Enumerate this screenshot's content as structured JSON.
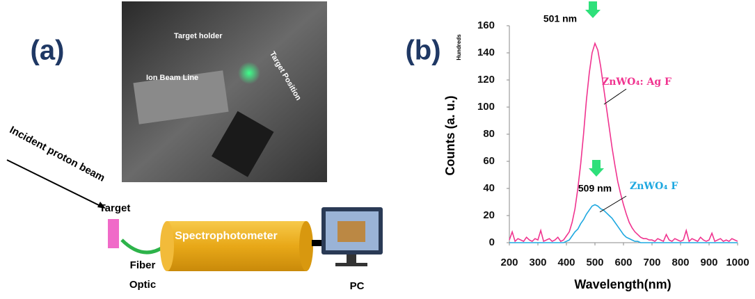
{
  "panel_a": {
    "label": "(a)",
    "photo_labels": [
      "Target holder",
      "Ion Beam Line",
      "Target Position"
    ],
    "beam": "Incident proton beam",
    "target": "Target",
    "fiber": [
      "Fiber",
      "Optic"
    ],
    "spectro": "Spectrophotometer",
    "pc": "PC"
  },
  "chart_data": {
    "type": "line",
    "panel_label": "(b)",
    "x_label": "Wavelength(nm)",
    "y_label": "Counts (a. u.)",
    "y_unit": "Hundreds",
    "xlim": [
      200,
      1000
    ],
    "xticks": [
      200,
      300,
      400,
      500,
      600,
      700,
      800,
      900,
      1000
    ],
    "ylim": [
      0,
      160
    ],
    "yticks": [
      0,
      20,
      40,
      60,
      80,
      100,
      120,
      140,
      160
    ],
    "annotations": [
      "501 nm",
      "509 nm"
    ],
    "x": [
      200,
      210,
      220,
      230,
      240,
      250,
      260,
      270,
      280,
      290,
      300,
      310,
      320,
      330,
      340,
      350,
      360,
      370,
      380,
      390,
      400,
      410,
      420,
      430,
      440,
      450,
      460,
      470,
      480,
      490,
      500,
      510,
      520,
      530,
      540,
      550,
      560,
      570,
      580,
      590,
      600,
      610,
      620,
      630,
      640,
      650,
      660,
      670,
      680,
      690,
      700,
      710,
      720,
      730,
      740,
      750,
      760,
      770,
      780,
      790,
      800,
      810,
      820,
      830,
      840,
      850,
      860,
      870,
      880,
      890,
      900,
      910,
      920,
      930,
      940,
      950,
      960,
      970,
      980,
      990,
      1000
    ],
    "series": [
      {
        "name": "ZnWO₄: Ag F",
        "color": "#f0338f",
        "values": [
          2,
          8,
          1,
          3,
          2,
          1,
          4,
          2,
          1,
          3,
          2,
          9,
          1,
          2,
          3,
          1,
          2,
          4,
          1,
          2,
          5,
          8,
          15,
          25,
          40,
          58,
          80,
          105,
          125,
          140,
          147,
          142,
          130,
          115,
          100,
          85,
          70,
          57,
          45,
          36,
          28,
          21,
          15,
          11,
          8,
          6,
          4,
          3,
          3,
          2,
          2,
          1,
          3,
          2,
          1,
          6,
          2,
          1,
          3,
          2,
          1,
          2,
          9,
          1,
          3,
          2,
          1,
          4,
          2,
          1,
          2,
          7,
          1,
          2,
          3,
          1,
          2,
          1,
          3,
          2,
          1
        ]
      },
      {
        "name": "ZnWO₄ F",
        "color": "#1ea8e0",
        "values": [
          0,
          0,
          0,
          0,
          0,
          0,
          0,
          0,
          0,
          0,
          0,
          0,
          0,
          0,
          0,
          0,
          0,
          0,
          0,
          0,
          1,
          2,
          5,
          8,
          10,
          14,
          17,
          21,
          24,
          27,
          28,
          27,
          25,
          24,
          22,
          20,
          18,
          15,
          12,
          9,
          6,
          4,
          3,
          2,
          1,
          1,
          0,
          0,
          0,
          0,
          0,
          0,
          0,
          0,
          0,
          0,
          0,
          0,
          0,
          0,
          0,
          0,
          0,
          0,
          0,
          0,
          0,
          0,
          0,
          0,
          0,
          0,
          0,
          0,
          0,
          0,
          0,
          0,
          0,
          0,
          0
        ]
      }
    ]
  }
}
